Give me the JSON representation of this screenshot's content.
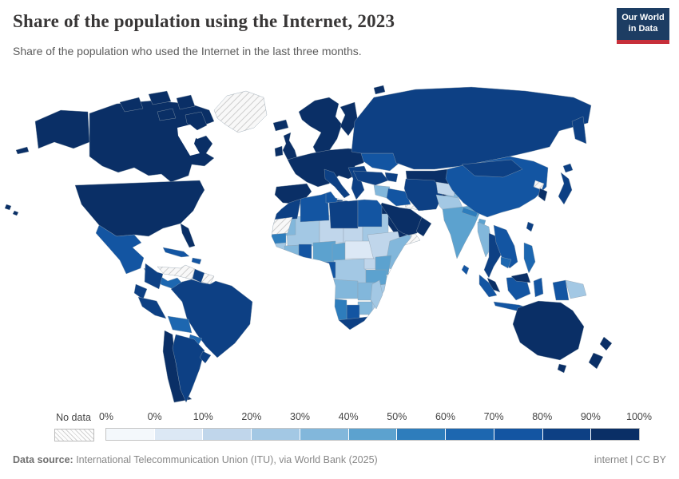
{
  "header": {
    "title": "Share of the population using the Internet, 2023",
    "subtitle": "Share of the population who used the Internet in the last three months.",
    "logo": {
      "line1": "Our World",
      "line2": "in Data",
      "bg": "#1d3d63",
      "accent": "#c72f3a"
    }
  },
  "footer": {
    "source_label": "Data source:",
    "source_text": " International Telecommunication Union (ITU), via World Bank (2025)",
    "right_text": "internet | CC BY"
  },
  "chart_data": {
    "type": "choropleth-map",
    "title": "Share of the population using the Internet, 2023",
    "unit": "% of population using the Internet",
    "projection": "world",
    "legend": {
      "no_data_label": "No data",
      "tick_labels": [
        "0%",
        "0%",
        "10%",
        "20%",
        "30%",
        "40%",
        "50%",
        "60%",
        "70%",
        "80%",
        "90%",
        "100%"
      ],
      "bin_ranges": [
        "0%",
        "0-10%",
        "10-20%",
        "20-30%",
        "30-40%",
        "40-50%",
        "50-60%",
        "60-70%",
        "70-80%",
        "80-90%",
        "90-100%"
      ],
      "colors": [
        "#f4f8fc",
        "#dce8f5",
        "#c0d6eb",
        "#a3c8e4",
        "#82b7db",
        "#5ca2cf",
        "#2e7dbc",
        "#1d67b0",
        "#1355a2",
        "#0d4084",
        "#0a2f66"
      ],
      "no_data_pattern": "diagonal-hatch"
    },
    "regions": [
      {
        "id": "greenland",
        "bin": "no-data"
      },
      {
        "id": "canada",
        "bin": 10
      },
      {
        "id": "usa",
        "bin": 10
      },
      {
        "id": "hawaii",
        "bin": 10
      },
      {
        "id": "mexico",
        "bin": 8
      },
      {
        "id": "central-america",
        "bin": 7
      },
      {
        "id": "cuba",
        "bin": 8
      },
      {
        "id": "hispaniola",
        "bin": 8
      },
      {
        "id": "venezuela",
        "bin": "no-data"
      },
      {
        "id": "guyana",
        "bin": 9
      },
      {
        "id": "suriname",
        "bin": "no-data"
      },
      {
        "id": "colombia",
        "bin": 9
      },
      {
        "id": "ecuador",
        "bin": 9
      },
      {
        "id": "peru",
        "bin": 9
      },
      {
        "id": "brazil",
        "bin": 9
      },
      {
        "id": "bolivia",
        "bin": 7
      },
      {
        "id": "paraguay",
        "bin": 7
      },
      {
        "id": "chile",
        "bin": 10
      },
      {
        "id": "argentina",
        "bin": 9
      },
      {
        "id": "uruguay",
        "bin": 9
      },
      {
        "id": "iceland",
        "bin": 10
      },
      {
        "id": "uk",
        "bin": 10
      },
      {
        "id": "ireland",
        "bin": 10
      },
      {
        "id": "scandinavia",
        "bin": 10
      },
      {
        "id": "finland",
        "bin": 10
      },
      {
        "id": "europe-west",
        "bin": 10
      },
      {
        "id": "iberia",
        "bin": 10
      },
      {
        "id": "italy",
        "bin": 9
      },
      {
        "id": "balkans",
        "bin": 9
      },
      {
        "id": "ukraine",
        "bin": 8
      },
      {
        "id": "russia",
        "bin": 9
      },
      {
        "id": "kazakhstan",
        "bin": 10
      },
      {
        "id": "uzbekistan",
        "bin": 3
      },
      {
        "id": "turkmenistan",
        "bin": "no-data"
      },
      {
        "id": "kyrgyzstan",
        "bin": 4
      },
      {
        "id": "caucasus",
        "bin": 9
      },
      {
        "id": "turkey",
        "bin": 9
      },
      {
        "id": "syria",
        "bin": 4
      },
      {
        "id": "iraq",
        "bin": 8
      },
      {
        "id": "iran",
        "bin": 9
      },
      {
        "id": "saudi-arabia",
        "bin": 10
      },
      {
        "id": "oman",
        "bin": 10
      },
      {
        "id": "yemen",
        "bin": "no-data"
      },
      {
        "id": "afghanistan",
        "bin": 2
      },
      {
        "id": "pakistan",
        "bin": 3
      },
      {
        "id": "india",
        "bin": 5
      },
      {
        "id": "nepal",
        "bin": 6
      },
      {
        "id": "bangladesh",
        "bin": 5
      },
      {
        "id": "sri-lanka",
        "bin": 8
      },
      {
        "id": "china",
        "bin": 8
      },
      {
        "id": "mongolia",
        "bin": 9
      },
      {
        "id": "japan",
        "bin": 9
      },
      {
        "id": "south-korea",
        "bin": 10
      },
      {
        "id": "north-korea",
        "bin": "no-data"
      },
      {
        "id": "taiwan",
        "bin": 9
      },
      {
        "id": "myanmar",
        "bin": 4
      },
      {
        "id": "thailand",
        "bin": 9
      },
      {
        "id": "vietnam",
        "bin": 8
      },
      {
        "id": "cambodia",
        "bin": 7
      },
      {
        "id": "malaysia",
        "bin": 10
      },
      {
        "id": "indonesia",
        "bin": 8
      },
      {
        "id": "philippines",
        "bin": 7
      },
      {
        "id": "papua-new-guinea",
        "bin": 3
      },
      {
        "id": "australia",
        "bin": 10
      },
      {
        "id": "new-zealand",
        "bin": 10
      },
      {
        "id": "morocco",
        "bin": 9
      },
      {
        "id": "western-sahara",
        "bin": "no-data"
      },
      {
        "id": "algeria",
        "bin": 8
      },
      {
        "id": "tunisia",
        "bin": 8
      },
      {
        "id": "libya",
        "bin": 9
      },
      {
        "id": "egypt",
        "bin": 8
      },
      {
        "id": "mauritania",
        "bin": 4
      },
      {
        "id": "mali",
        "bin": 3
      },
      {
        "id": "niger",
        "bin": 2
      },
      {
        "id": "chad",
        "bin": 2
      },
      {
        "id": "sudan",
        "bin": 3
      },
      {
        "id": "senegal",
        "bin": 6
      },
      {
        "id": "guinea",
        "bin": 3
      },
      {
        "id": "ivory-coast",
        "bin": 4
      },
      {
        "id": "ghana",
        "bin": 8
      },
      {
        "id": "nigeria",
        "bin": 5
      },
      {
        "id": "cameroon",
        "bin": 5
      },
      {
        "id": "car-ssudan",
        "bin": 1
      },
      {
        "id": "ethiopia",
        "bin": 2
      },
      {
        "id": "somalia",
        "bin": 4
      },
      {
        "id": "uganda",
        "bin": 2
      },
      {
        "id": "kenya",
        "bin": 5
      },
      {
        "id": "drc",
        "bin": 3
      },
      {
        "id": "gabon",
        "bin": 8
      },
      {
        "id": "tanzania",
        "bin": 5
      },
      {
        "id": "angola",
        "bin": 4
      },
      {
        "id": "zambia",
        "bin": 4
      },
      {
        "id": "mozambique",
        "bin": 3
      },
      {
        "id": "zimbabwe",
        "bin": 4
      },
      {
        "id": "botswana",
        "bin": 8
      },
      {
        "id": "namibia",
        "bin": 6
      },
      {
        "id": "south-africa",
        "bin": 9
      },
      {
        "id": "madagascar",
        "bin": 3
      }
    ]
  }
}
